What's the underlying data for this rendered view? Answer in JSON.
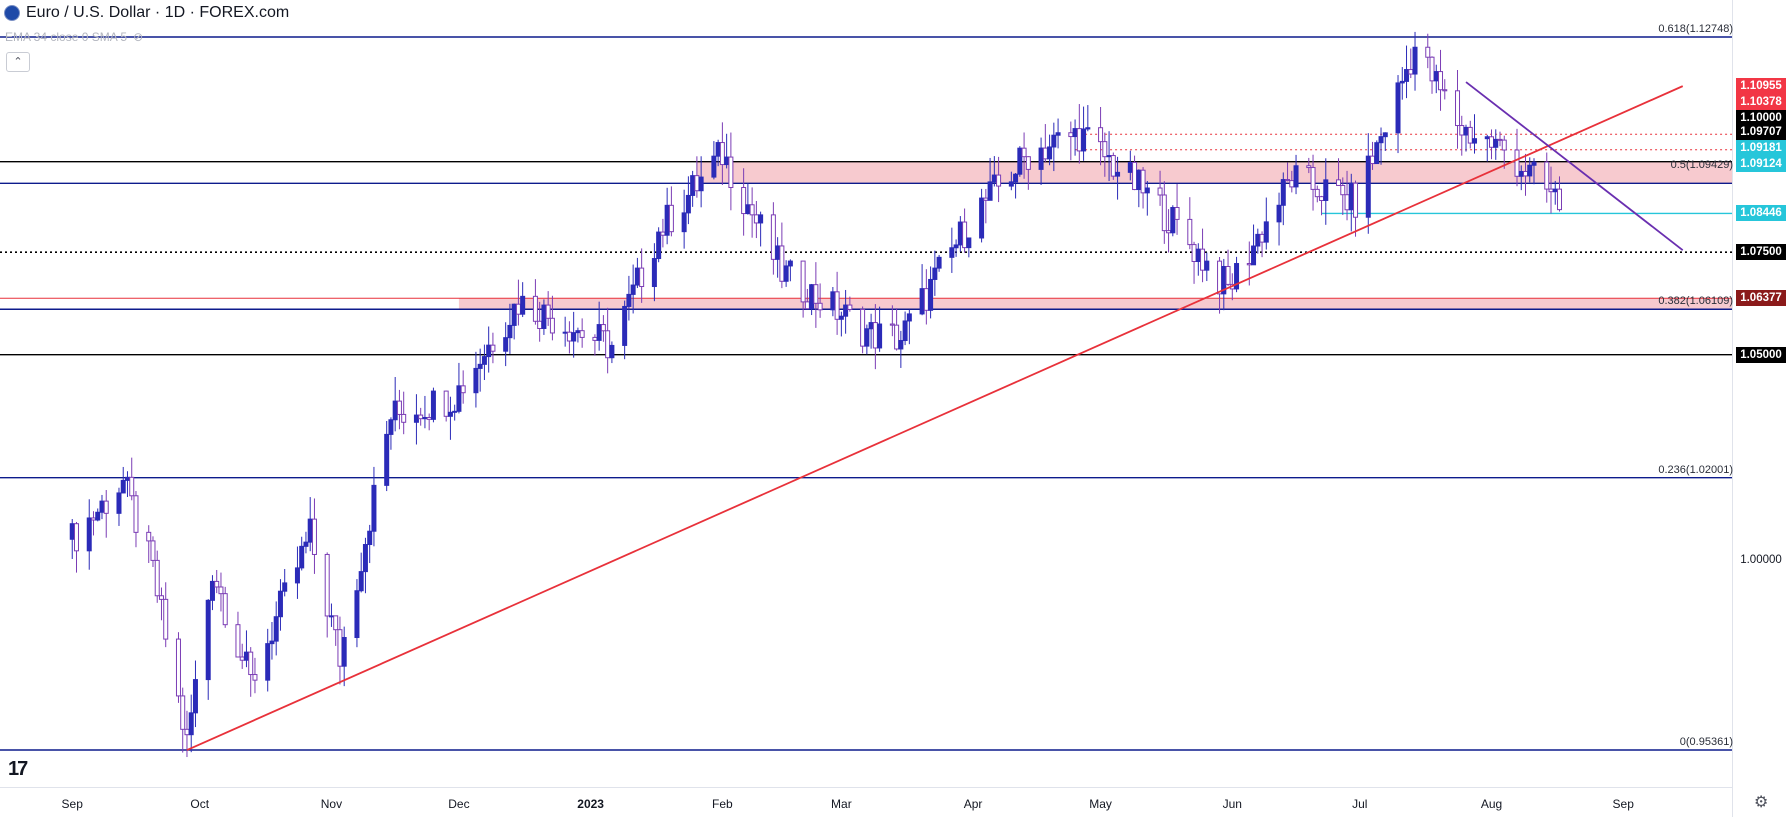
{
  "header": {
    "symbol_title": "Euro / U.S. Dollar · 1D · FOREX.com",
    "indicator_label": "EMA 34 close 0 SMA 5"
  },
  "colors": {
    "background": "#ffffff",
    "candle_up": "#2b2bb8",
    "candle_down": "#7b3db5",
    "support_line": "#0d1b8c",
    "trendline_up": "#e8313a",
    "trendline_down": "#6a2fb0",
    "resistance_zone": "#f4b8bf",
    "tag_black": "#000000",
    "tag_red": "#f23645",
    "tag_cyan": "#26c6da",
    "tag_darkred": "#8b1a1a"
  },
  "chart_data": {
    "type": "candlestick",
    "title": "Euro / U.S. Dollar · 1D · FOREX.com",
    "x": [
      "2022-09",
      "2022-10",
      "2022-11",
      "2022-12",
      "2023-01",
      "2023-02",
      "2023-03",
      "2023-04",
      "2023-05",
      "2023-06",
      "2023-07",
      "2023-08",
      "2023-09"
    ],
    "x_tick_labels": [
      "Sep",
      "Oct",
      "Nov",
      "Dec",
      "2023",
      "Feb",
      "Mar",
      "Apr",
      "May",
      "Jun",
      "Jul",
      "Aug",
      "Sep"
    ],
    "ylim": [
      0.953,
      1.128
    ],
    "close_path": [
      {
        "date": "2022-09-01",
        "close": 1.005
      },
      {
        "date": "2022-09-13",
        "close": 1.019
      },
      {
        "date": "2022-09-20",
        "close": 0.997
      },
      {
        "date": "2022-09-28",
        "close": 0.955
      },
      {
        "date": "2022-10-04",
        "close": 0.998
      },
      {
        "date": "2022-10-13",
        "close": 0.97
      },
      {
        "date": "2022-10-27",
        "close": 1.006
      },
      {
        "date": "2022-11-03",
        "close": 0.976
      },
      {
        "date": "2022-11-15",
        "close": 1.035
      },
      {
        "date": "2022-11-30",
        "close": 1.04
      },
      {
        "date": "2022-12-15",
        "close": 1.063
      },
      {
        "date": "2023-01-06",
        "close": 1.052
      },
      {
        "date": "2023-01-17",
        "close": 1.08
      },
      {
        "date": "2023-02-01",
        "close": 1.099
      },
      {
        "date": "2023-02-15",
        "close": 1.07
      },
      {
        "date": "2023-03-08",
        "close": 1.055
      },
      {
        "date": "2023-03-15",
        "close": 1.054
      },
      {
        "date": "2023-04-01",
        "close": 1.084
      },
      {
        "date": "2023-04-14",
        "close": 1.099
      },
      {
        "date": "2023-04-26",
        "close": 1.104
      },
      {
        "date": "2023-05-15",
        "close": 1.086
      },
      {
        "date": "2023-05-31",
        "close": 1.066
      },
      {
        "date": "2023-06-15",
        "close": 1.093
      },
      {
        "date": "2023-06-30",
        "close": 1.087
      },
      {
        "date": "2023-07-14",
        "close": 1.125
      },
      {
        "date": "2023-07-25",
        "close": 1.105
      },
      {
        "date": "2023-08-04",
        "close": 1.1
      },
      {
        "date": "2023-08-17",
        "close": 1.087
      }
    ],
    "price_tags": [
      {
        "label": "1.10955",
        "value": 1.10955,
        "style": "red"
      },
      {
        "label": "1.10378",
        "value": 1.10378,
        "style": "red"
      },
      {
        "label": "1.10000",
        "value": 1.1,
        "style": "black"
      },
      {
        "label": "1.09707",
        "value": 1.09707,
        "style": "black"
      },
      {
        "label": "1.09181",
        "value": 1.09181,
        "style": "cyan"
      },
      {
        "label": "1.09124",
        "value": 1.09124,
        "style": "cyan"
      },
      {
        "label": "1.08446",
        "value": 1.08446,
        "style": "cyan"
      },
      {
        "label": "1.07500",
        "value": 1.075,
        "style": "black"
      },
      {
        "label": "1.06377",
        "value": 1.06377,
        "style": "darkred"
      },
      {
        "label": "1.05000",
        "value": 1.05,
        "style": "black"
      }
    ],
    "axis_plain_labels": [
      {
        "label": "1.00000",
        "value": 1.0
      }
    ],
    "fibonacci_levels": [
      {
        "label": "0.618(1.12748)",
        "ratio": 0.618,
        "value": 1.12748
      },
      {
        "label": "0.5(1.09429)",
        "ratio": 0.5,
        "value": 1.09429
      },
      {
        "label": "0.382(1.06109)",
        "ratio": 0.382,
        "value": 1.06109
      },
      {
        "label": "0.236(1.02001)",
        "ratio": 0.236,
        "value": 1.02001
      },
      {
        "label": "0(0.95361)",
        "ratio": 0.0,
        "value": 0.95361
      }
    ],
    "horizontal_levels": [
      {
        "value": 1.12748,
        "style": "solid-navy"
      },
      {
        "value": 1.09707,
        "style": "solid-black"
      },
      {
        "value": 1.09181,
        "style": "solid-navy"
      },
      {
        "value": 1.075,
        "style": "dotted-black"
      },
      {
        "value": 1.06377,
        "style": "solid-red"
      },
      {
        "value": 1.06109,
        "style": "solid-navy"
      },
      {
        "value": 1.05,
        "style": "solid-black"
      },
      {
        "value": 1.02001,
        "style": "solid-navy"
      },
      {
        "value": 0.95361,
        "style": "solid-navy"
      },
      {
        "value": 1.10378,
        "style": "dotted-red"
      },
      {
        "value": 1.1,
        "style": "dotted-red"
      },
      {
        "value": 1.08446,
        "style": "solid-cyan"
      }
    ],
    "zones": [
      {
        "from_date": "2023-01-26",
        "top": 1.09707,
        "bottom": 1.09181,
        "color": "resistance_zone"
      },
      {
        "from_date": "2022-12-01",
        "top": 1.06377,
        "bottom": 1.06109,
        "color": "resistance_zone"
      }
    ],
    "trendlines": [
      {
        "from": {
          "date": "2022-09-28",
          "value": 0.9536
        },
        "to": {
          "date": "2023-09-15",
          "value": 1.1155
        },
        "color": "trendline_up"
      },
      {
        "from": {
          "date": "2023-07-26",
          "value": 1.1165
        },
        "to": {
          "date": "2023-09-15",
          "value": 1.0755
        },
        "color": "trendline_down"
      }
    ]
  }
}
